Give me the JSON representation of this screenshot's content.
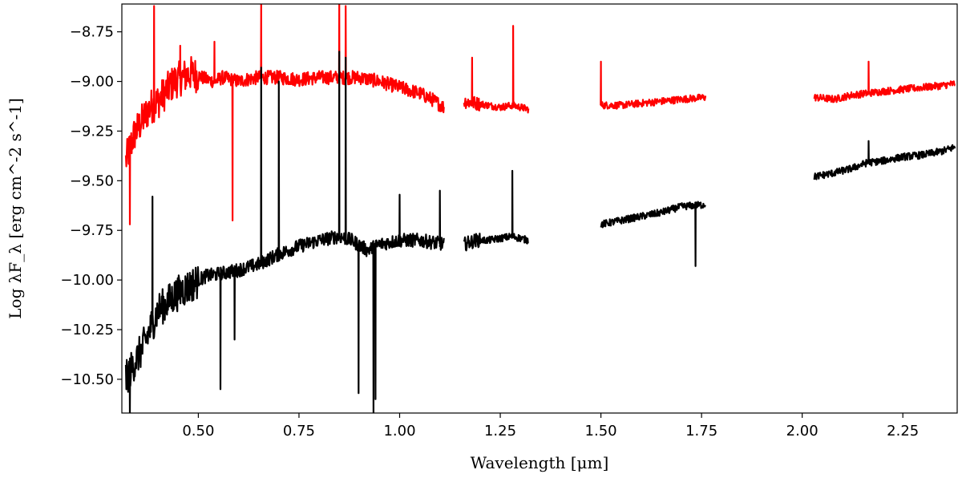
{
  "chart_data": {
    "type": "line",
    "title": "",
    "xlabel": "Wavelength [μm]",
    "ylabel": "Log λF_λ [erg cm^-2 s^-1]",
    "xlim": [
      0.31,
      2.385
    ],
    "ylim": [
      -10.67,
      -8.61
    ],
    "x_ticks": [
      0.5,
      0.75,
      1.0,
      1.25,
      1.5,
      1.75,
      2.0,
      2.25
    ],
    "x_tick_labels": [
      "0.50",
      "0.75",
      "1.00",
      "1.25",
      "1.50",
      "1.75",
      "2.00",
      "2.25"
    ],
    "y_ticks": [
      -8.75,
      -9.0,
      -9.25,
      -9.5,
      -9.75,
      -10.0,
      -10.25,
      -10.5
    ],
    "y_tick_labels": [
      "−8.75",
      "−9.00",
      "−9.25",
      "−9.50",
      "−9.75",
      "−10.00",
      "−10.25",
      "−10.50"
    ],
    "grid": false,
    "legend": "none",
    "colors": {
      "series_red": "#ff0000",
      "series_black": "#000000"
    },
    "series": [
      {
        "color": "#ff0000",
        "segments": [
          {
            "x": [
              0.32,
              0.34,
              0.36,
              0.38,
              0.4,
              0.42,
              0.44,
              0.46,
              0.48,
              0.5,
              0.52,
              0.54,
              0.56,
              0.58,
              0.6,
              0.62,
              0.65,
              0.7,
              0.75,
              0.8,
              0.85,
              0.9,
              0.95,
              1.0,
              1.05,
              1.08,
              1.11
            ],
            "y": [
              -9.4,
              -9.27,
              -9.2,
              -9.13,
              -9.1,
              -9.05,
              -9.0,
              -8.98,
              -8.96,
              -8.97,
              -8.99,
              -9.0,
              -8.98,
              -8.99,
              -9.0,
              -8.99,
              -8.98,
              -8.98,
              -8.99,
              -8.98,
              -8.98,
              -8.98,
              -9.0,
              -9.03,
              -9.06,
              -9.09,
              -9.13
            ],
            "spikes": [
              {
                "x": 0.39,
                "y": -8.62
              },
              {
                "x": 0.33,
                "y": -9.72
              },
              {
                "x": 0.585,
                "y": -9.7
              },
              {
                "x": 0.656,
                "y": -8.6
              },
              {
                "x": 0.85,
                "y": -8.6
              },
              {
                "x": 0.866,
                "y": -8.62
              },
              {
                "x": 0.54,
                "y": -8.8
              },
              {
                "x": 0.455,
                "y": -8.82
              }
            ]
          },
          {
            "x": [
              1.16,
              1.19,
              1.22,
              1.25,
              1.28,
              1.3,
              1.32
            ],
            "y": [
              -9.1,
              -9.11,
              -9.12,
              -9.13,
              -9.12,
              -9.13,
              -9.14
            ],
            "spikes": [
              {
                "x": 1.18,
                "y": -8.88
              },
              {
                "x": 1.282,
                "y": -8.72
              }
            ]
          },
          {
            "x": [
              1.5,
              1.55,
              1.6,
              1.65,
              1.7,
              1.76
            ],
            "y": [
              -9.12,
              -9.12,
              -9.11,
              -9.1,
              -9.09,
              -9.08
            ],
            "spikes": [
              {
                "x": 1.5,
                "y": -8.9
              }
            ]
          },
          {
            "x": [
              2.03,
              2.08,
              2.12,
              2.16,
              2.2,
              2.25,
              2.3,
              2.35,
              2.38
            ],
            "y": [
              -9.08,
              -9.09,
              -9.07,
              -9.06,
              -9.05,
              -9.04,
              -9.03,
              -9.02,
              -9.01
            ],
            "spikes": [
              {
                "x": 2.165,
                "y": -8.9
              }
            ]
          }
        ]
      },
      {
        "color": "#000000",
        "segments": [
          {
            "x": [
              0.32,
              0.34,
              0.36,
              0.38,
              0.4,
              0.42,
              0.44,
              0.46,
              0.48,
              0.5,
              0.52,
              0.55,
              0.6,
              0.65,
              0.7,
              0.75,
              0.8,
              0.85,
              0.88,
              0.92,
              0.95,
              1.0,
              1.05,
              1.08,
              1.11
            ],
            "y": [
              -10.5,
              -10.42,
              -10.35,
              -10.25,
              -10.15,
              -10.12,
              -10.08,
              -10.05,
              -10.03,
              -10.0,
              -9.98,
              -9.97,
              -9.95,
              -9.92,
              -9.87,
              -9.83,
              -9.8,
              -9.78,
              -9.8,
              -9.85,
              -9.82,
              -9.8,
              -9.8,
              -9.81,
              -9.82
            ],
            "spikes": [
              {
                "x": 0.33,
                "y": -10.68
              },
              {
                "x": 0.555,
                "y": -10.55
              },
              {
                "x": 0.59,
                "y": -10.3
              },
              {
                "x": 0.656,
                "y": -8.93
              },
              {
                "x": 0.7,
                "y": -9.0
              },
              {
                "x": 0.85,
                "y": -8.85
              },
              {
                "x": 0.866,
                "y": -8.88
              },
              {
                "x": 0.898,
                "y": -10.57
              },
              {
                "x": 0.935,
                "y": -10.68
              },
              {
                "x": 0.94,
                "y": -10.6
              },
              {
                "x": 0.386,
                "y": -9.58
              },
              {
                "x": 1.1,
                "y": -9.55
              },
              {
                "x": 1.0,
                "y": -9.57
              }
            ]
          },
          {
            "x": [
              1.16,
              1.19,
              1.22,
              1.25,
              1.28,
              1.3,
              1.32
            ],
            "y": [
              -9.82,
              -9.8,
              -9.8,
              -9.79,
              -9.78,
              -9.79,
              -9.8
            ],
            "spikes": [
              {
                "x": 1.28,
                "y": -9.45
              }
            ]
          },
          {
            "x": [
              1.5,
              1.55,
              1.6,
              1.65,
              1.7,
              1.76
            ],
            "y": [
              -9.72,
              -9.7,
              -9.68,
              -9.66,
              -9.63,
              -9.62
            ],
            "spikes": [
              {
                "x": 1.735,
                "y": -9.93
              }
            ]
          },
          {
            "x": [
              2.03,
              2.08,
              2.12,
              2.16,
              2.2,
              2.25,
              2.3,
              2.35,
              2.38
            ],
            "y": [
              -9.48,
              -9.46,
              -9.44,
              -9.41,
              -9.4,
              -9.38,
              -9.37,
              -9.35,
              -9.33
            ],
            "spikes": [
              {
                "x": 2.165,
                "y": -9.3
              }
            ]
          }
        ]
      }
    ]
  }
}
